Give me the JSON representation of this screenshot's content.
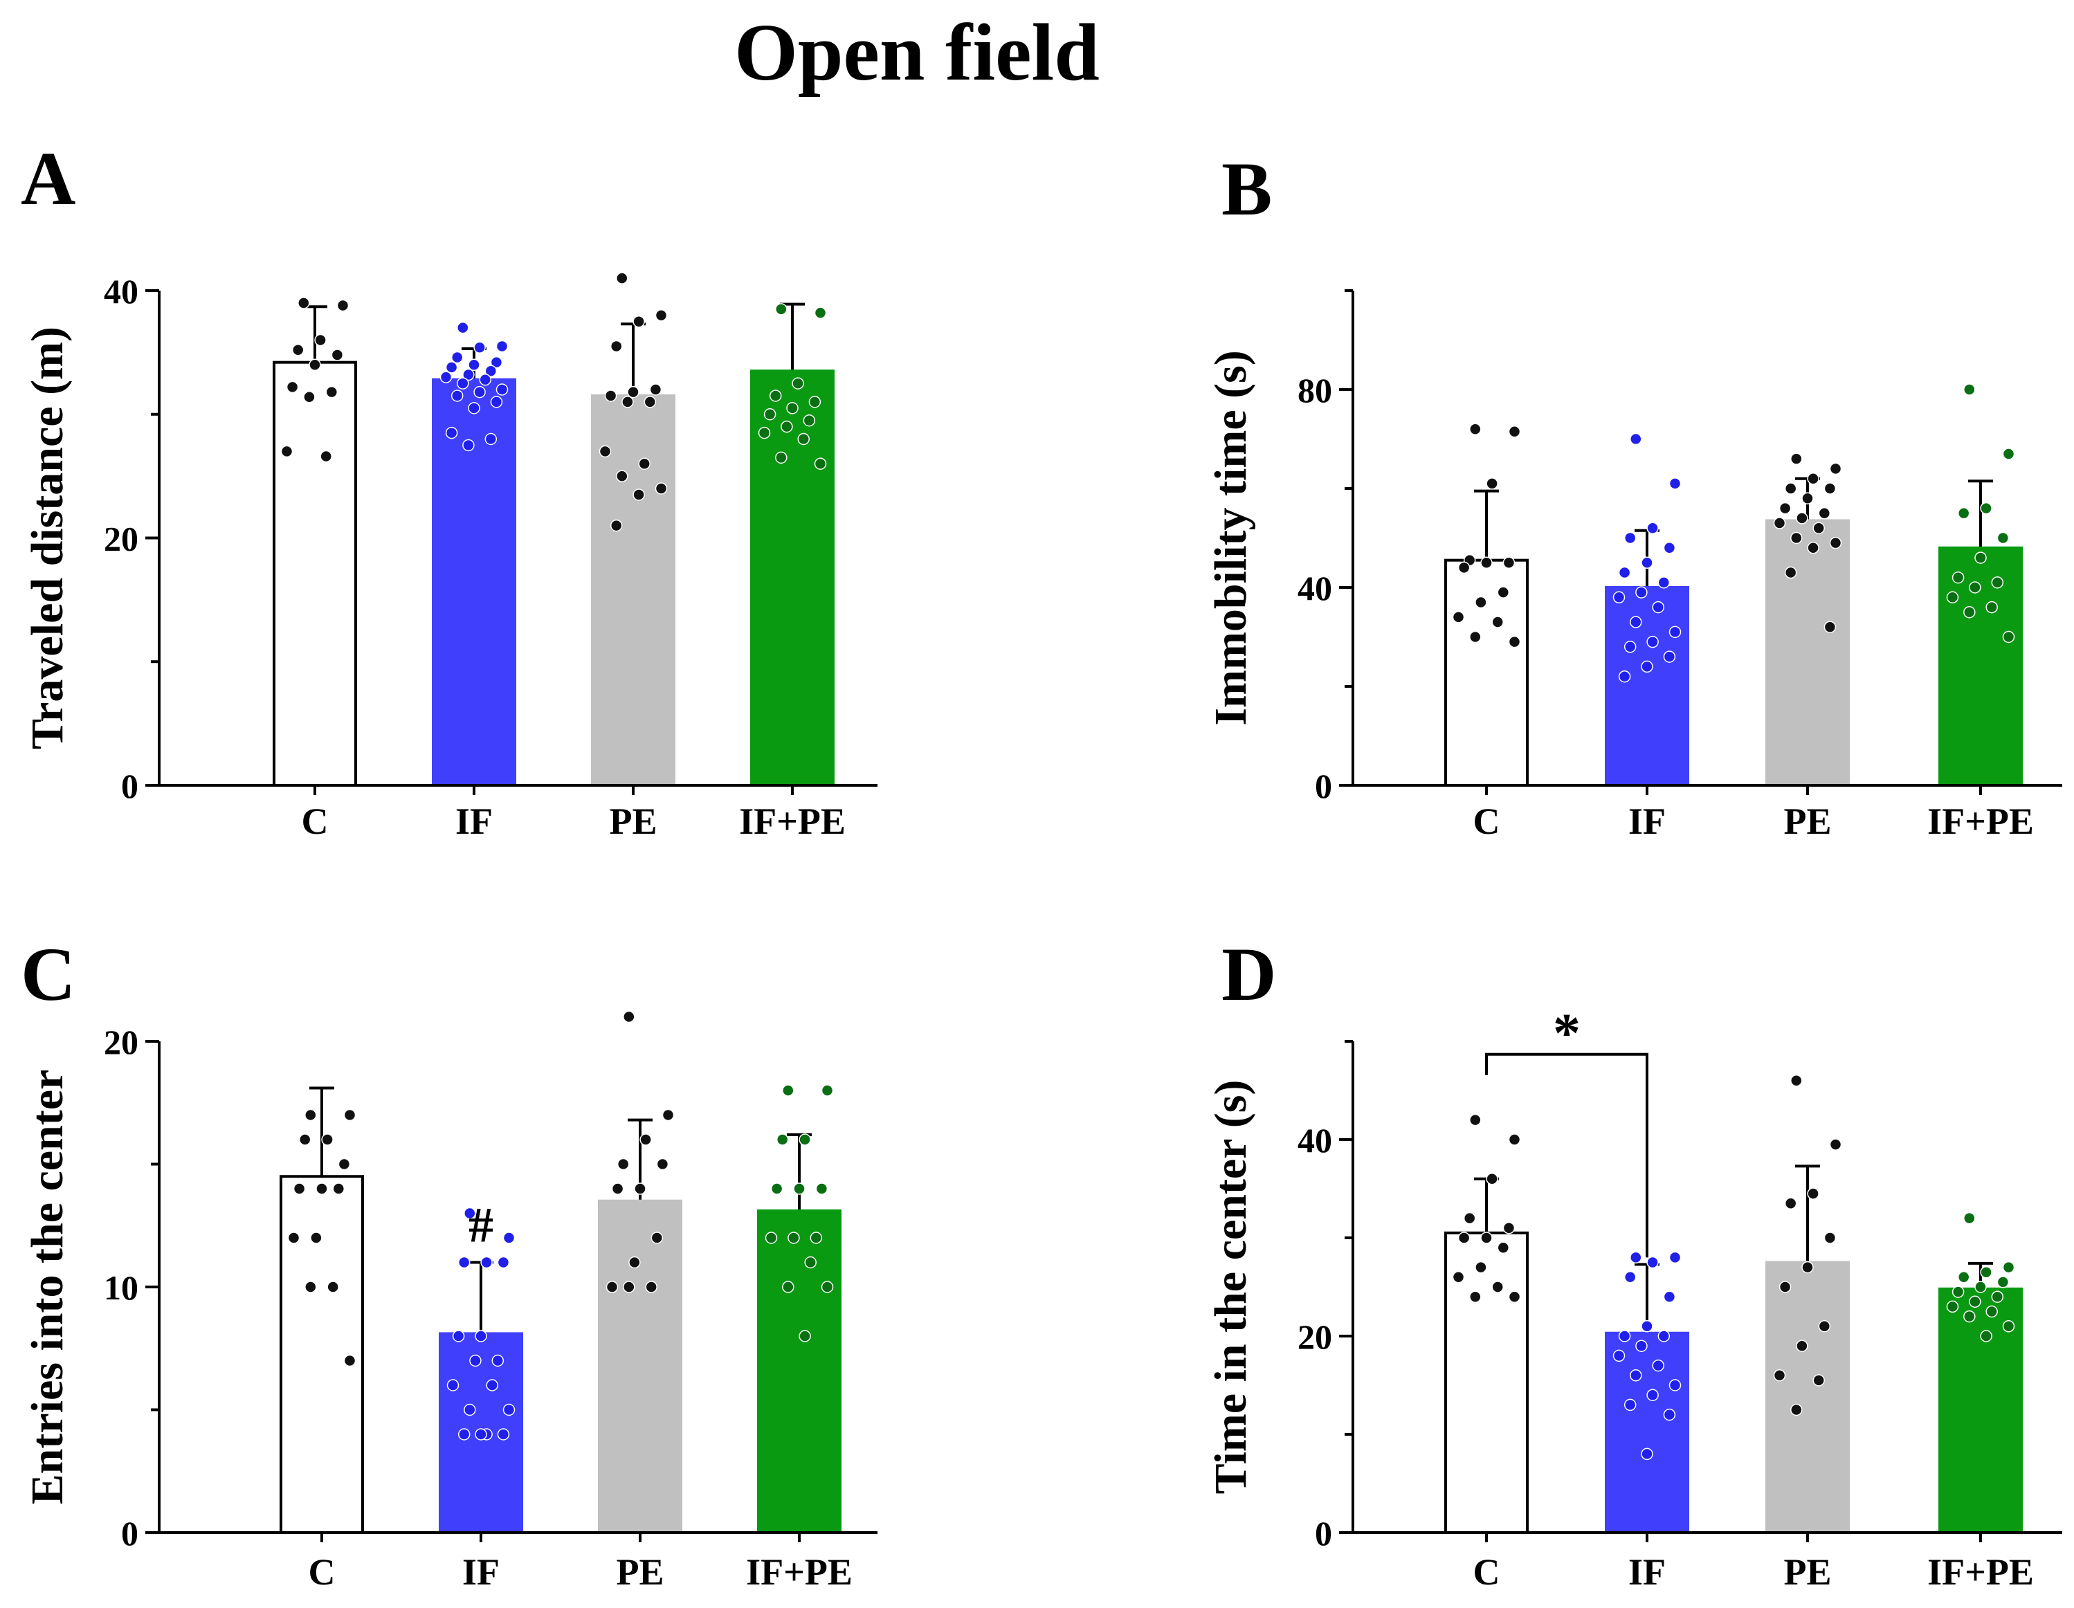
{
  "title": "Open field",
  "colors": {
    "C": "#ffffff",
    "IF": "#3f3ffc",
    "PE": "#c0c0c0",
    "IF+PE": "#0a9a12",
    "axis": "#000000"
  },
  "chart_data": [
    {
      "panel": "A",
      "type": "bar",
      "ylabel": "Traveled distance (m)",
      "ylim": [
        0,
        40
      ],
      "yticks": [
        0,
        20,
        40
      ],
      "categories": [
        "C",
        "IF",
        "PE",
        "IF+PE"
      ],
      "values": [
        34.2,
        32.8,
        31.5,
        33.5
      ],
      "errors": [
        4.5,
        2.5,
        5.8,
        5.4
      ],
      "points": [
        [
          39,
          38.8,
          36,
          35.2,
          34.8,
          34,
          32.2,
          31.8,
          31.4,
          27,
          26.6
        ],
        [
          37,
          35.5,
          35.4,
          34.6,
          34.2,
          34,
          33.8,
          33.5,
          33.2,
          33,
          32.8,
          32.5,
          32,
          31.8,
          31.5,
          31,
          30.5,
          28.5,
          28,
          27.5
        ],
        [
          41,
          38,
          37.5,
          35.5,
          32,
          31.8,
          31.5,
          31,
          31,
          27,
          26,
          25,
          24,
          23.5,
          21
        ],
        [
          38.5,
          38.2,
          32.5,
          31.5,
          31,
          30.5,
          30,
          29.5,
          29,
          28.5,
          28,
          26.5,
          26
        ]
      ],
      "annotations": []
    },
    {
      "panel": "B",
      "type": "bar",
      "ylabel": "Immobility time (s)",
      "ylim": [
        0,
        100
      ],
      "yticks": [
        0,
        40,
        80
      ],
      "categories": [
        "C",
        "IF",
        "PE",
        "IF+PE"
      ],
      "values": [
        45.5,
        40,
        53.5,
        48
      ],
      "errors": [
        14,
        11.5,
        8.5,
        13.5
      ],
      "points": [
        [
          72,
          71.5,
          61,
          45.5,
          45,
          45,
          44,
          39,
          37,
          34,
          33,
          30,
          29
        ],
        [
          70,
          61,
          52,
          50,
          48,
          45,
          43,
          41,
          39,
          38,
          36,
          33,
          31,
          29,
          28,
          26,
          24,
          22
        ],
        [
          66,
          64,
          62,
          60,
          60,
          58,
          56,
          55,
          54,
          53,
          52,
          50,
          49,
          48,
          43,
          32
        ],
        [
          80,
          67,
          56,
          55,
          50,
          46,
          42,
          41,
          40,
          38,
          36,
          35,
          30
        ]
      ],
      "annotations": []
    },
    {
      "panel": "C",
      "type": "bar",
      "ylabel": "Entries into  the center",
      "ylim": [
        0,
        20
      ],
      "yticks": [
        0,
        10,
        20
      ],
      "categories": [
        "C",
        "IF",
        "PE",
        "IF+PE"
      ],
      "values": [
        14.5,
        8.1,
        13.5,
        13.1
      ],
      "errors": [
        3.6,
        2.9,
        3.3,
        3.1
      ],
      "points": [
        [
          17,
          17,
          16,
          16,
          15,
          14,
          14,
          14,
          12,
          12,
          10,
          10,
          7
        ],
        [
          13,
          12,
          11,
          11,
          11,
          8,
          8,
          7,
          7,
          6,
          6,
          5,
          5,
          4,
          4,
          4,
          4
        ],
        [
          21,
          17,
          16,
          15,
          15,
          14,
          14,
          12,
          11,
          10,
          10,
          10
        ],
        [
          18,
          18,
          16,
          16,
          14,
          14,
          14,
          12,
          12,
          12,
          11,
          10,
          10,
          8
        ]
      ],
      "annotations": [
        "#"
      ]
    },
    {
      "panel": "D",
      "type": "bar",
      "ylabel": "Time in the center (s)",
      "ylim": [
        0,
        50
      ],
      "yticks": [
        0,
        20,
        40
      ],
      "categories": [
        "C",
        "IF",
        "PE",
        "IF+PE"
      ],
      "values": [
        30.5,
        20.3,
        27.5,
        24.8
      ],
      "errors": [
        5.5,
        7,
        9.8,
        2.6
      ],
      "points": [
        [
          42,
          40,
          36,
          32,
          31,
          30,
          30,
          29,
          27,
          26,
          25,
          24,
          24
        ],
        [
          28,
          28,
          27.5,
          26,
          24,
          21,
          20,
          20,
          19,
          18,
          17,
          16,
          15,
          14,
          13,
          12,
          8
        ],
        [
          46,
          39.5,
          34.5,
          33.5,
          30,
          27,
          25,
          21,
          19,
          16,
          15.5,
          12.5
        ],
        [
          32,
          27,
          26.5,
          26,
          25.5,
          25,
          24.5,
          24,
          23.5,
          23,
          22.5,
          22,
          21,
          20
        ]
      ],
      "annotations": [
        "*"
      ]
    }
  ]
}
